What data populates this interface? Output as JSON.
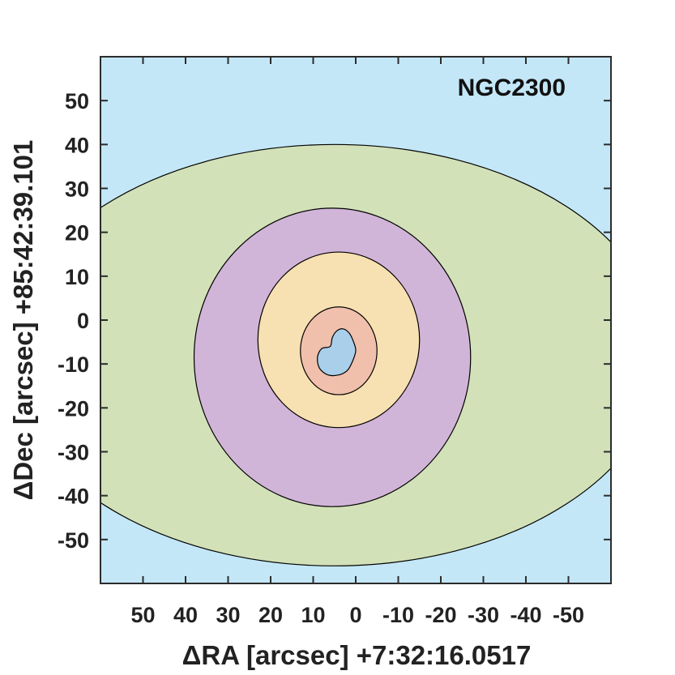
{
  "chart_data": {
    "type": "contour",
    "title": "NGC2300",
    "xlabel": "ΔRA [arcsec] +7:32:16.0517",
    "ylabel": "ΔDec [arcsec] +85:42:39.101",
    "xlim": [
      60,
      -60
    ],
    "ylim": [
      -60,
      60
    ],
    "x_reversed": true,
    "x_ticks": [
      50,
      40,
      30,
      20,
      10,
      0,
      -10,
      -20,
      -30,
      -40,
      -50
    ],
    "y_ticks": [
      50,
      40,
      30,
      20,
      10,
      0,
      -10,
      -20,
      -30,
      -40,
      -50
    ],
    "grid": false,
    "colors": {
      "background": "#c3e7f7",
      "green": "#d2e1b8",
      "purple": "#d1b5d8",
      "yellow": "#f7e0b1",
      "salmon": "#f0c0ad",
      "blue": "#a9cfea",
      "axis": "#2c2c2c"
    },
    "contours": [
      {
        "level": 1,
        "color": "green",
        "center": [
          5,
          -8
        ],
        "rx": 77,
        "ry": 48,
        "clipped": true
      },
      {
        "level": 2,
        "color": "purple",
        "center": [
          5.5,
          -8.5
        ],
        "rx": 32.5,
        "ry": 34
      },
      {
        "level": 3,
        "color": "yellow",
        "center": [
          4,
          -4.5
        ],
        "rx": 19,
        "ry": 20
      },
      {
        "level": 4,
        "color": "salmon",
        "center": [
          4,
          -7
        ],
        "rx": 9,
        "ry": 10
      },
      {
        "level": 5,
        "color": "blue",
        "shape": "kidney",
        "points": [
          [
            0,
            -7
          ],
          [
            0.5,
            -5
          ],
          [
            1.5,
            -3
          ],
          [
            3,
            -2
          ],
          [
            4.5,
            -2.5
          ],
          [
            5.5,
            -4
          ],
          [
            6,
            -6
          ],
          [
            8,
            -6.5
          ],
          [
            9,
            -8.5
          ],
          [
            8.5,
            -11
          ],
          [
            6.5,
            -12.5
          ],
          [
            4,
            -12.5
          ],
          [
            2,
            -11.5
          ],
          [
            0.8,
            -9.5
          ]
        ]
      }
    ]
  }
}
